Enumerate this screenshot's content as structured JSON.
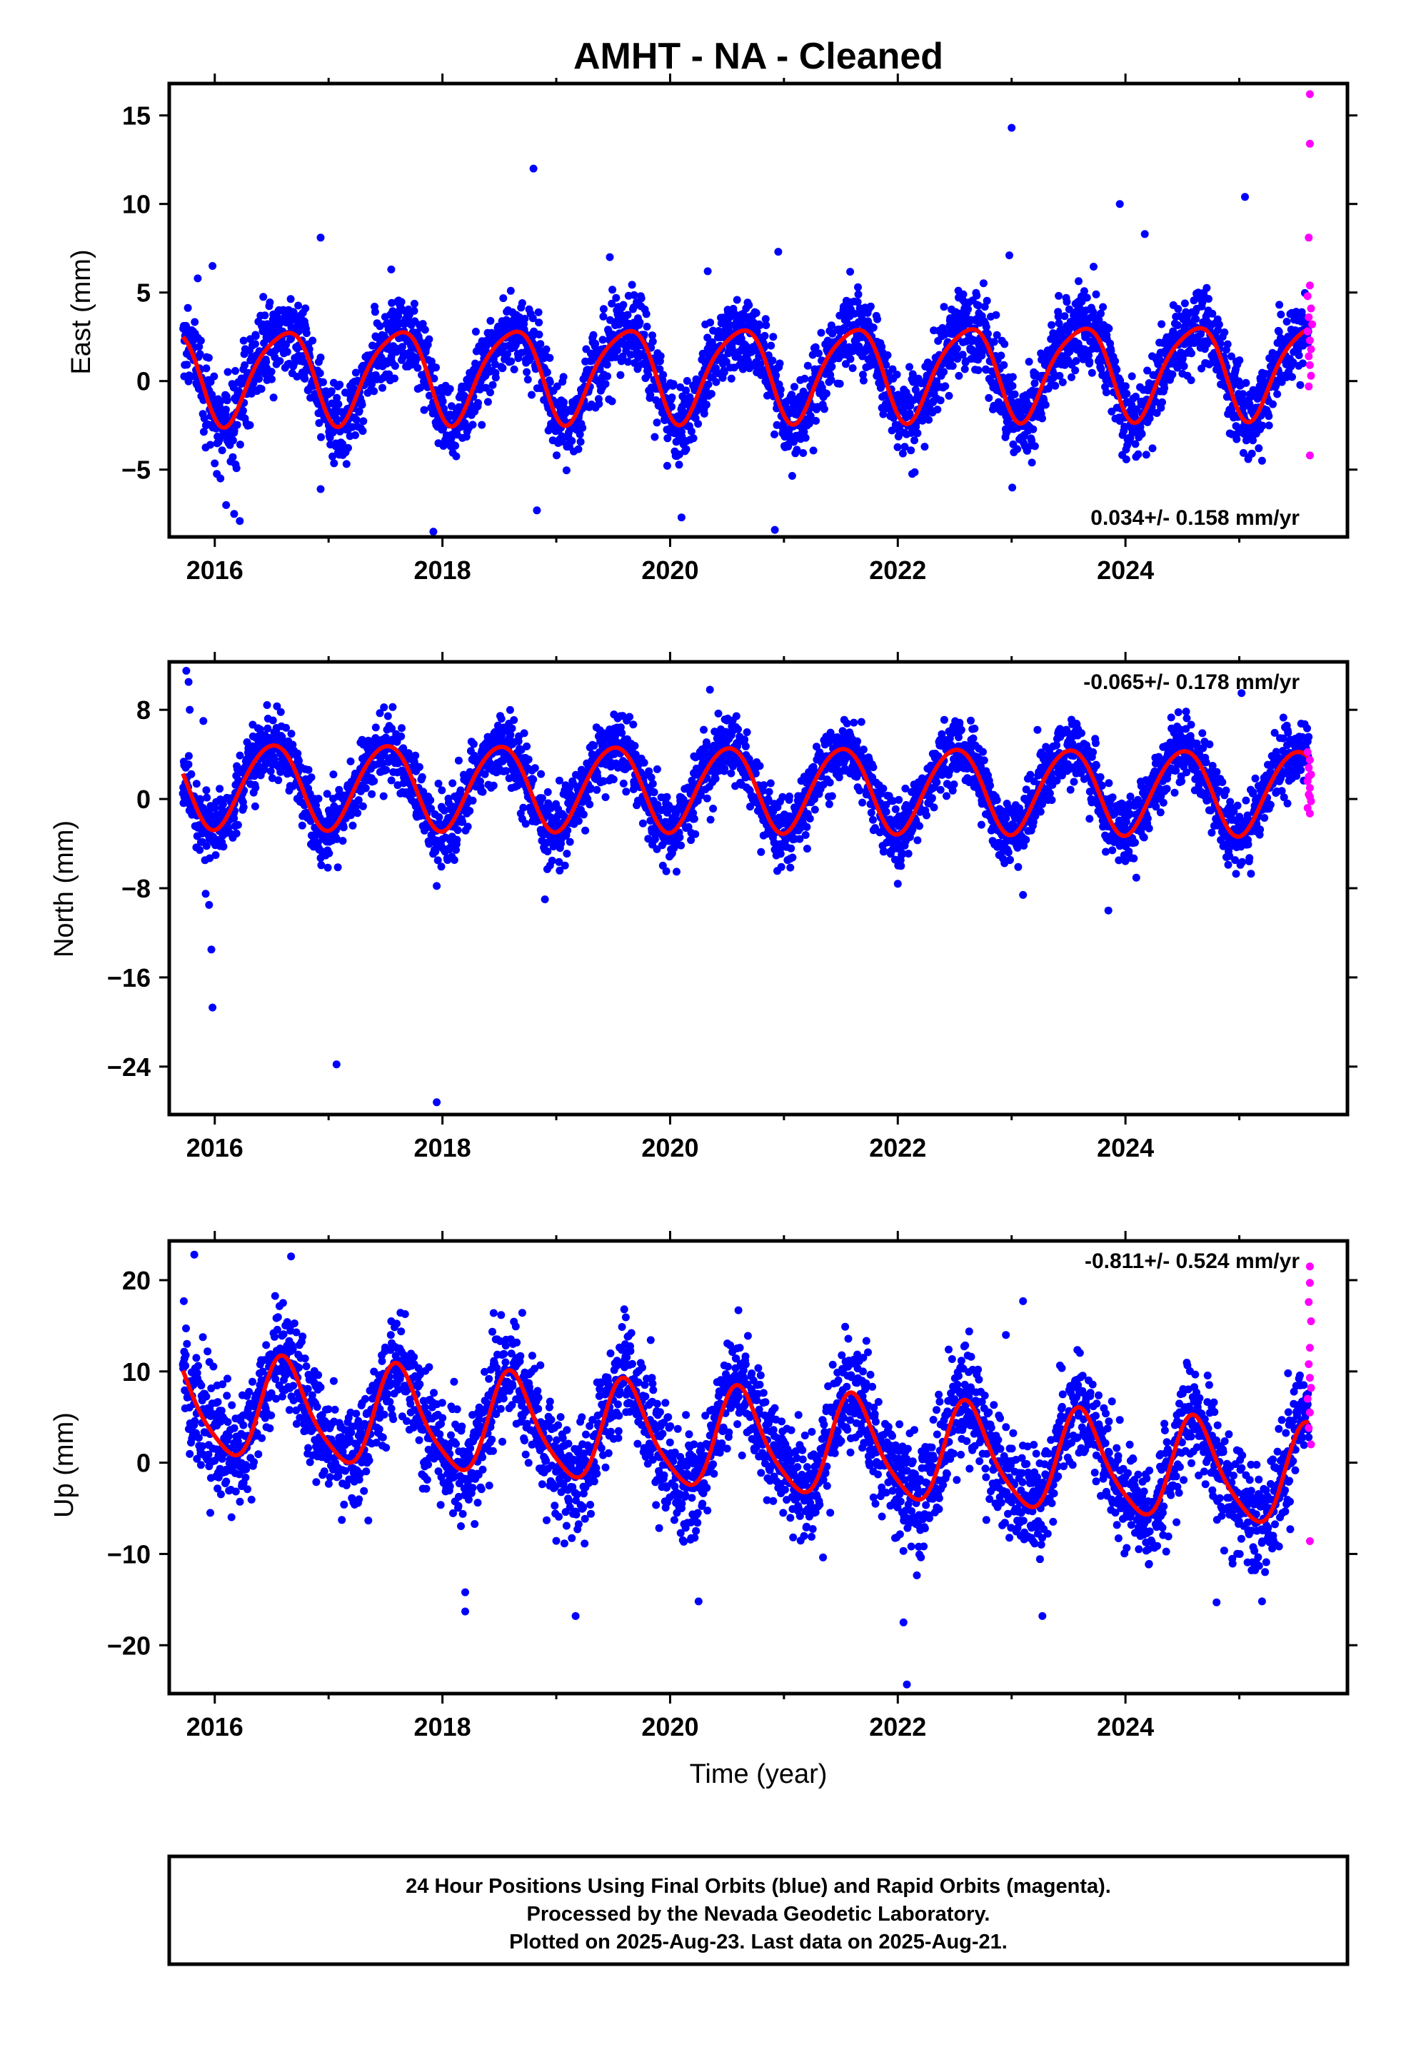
{
  "title": "AMHT  - NA - Cleaned",
  "footer": {
    "line1": "24 Hour Positions Using Final Orbits (blue) and Rapid Orbits (magenta).",
    "line2": "Processed by the Nevada Geodetic Laboratory.",
    "line3": "Plotted on 2025-Aug-23. Last data on 2025-Aug-21."
  },
  "colors": {
    "final": "#0000ff",
    "rapid": "#ff00ff",
    "fit": "#ff0000",
    "frame": "#000000"
  },
  "chart_data": [
    {
      "type": "scatter",
      "xlabel": "",
      "ylabel": "East (mm)",
      "xlim": [
        2015.6,
        2025.95
      ],
      "ylim": [
        -8.8,
        16.8
      ],
      "xticks": [
        "2016",
        "2018",
        "2020",
        "2022",
        "2024"
      ],
      "yticks": [
        "15",
        "10",
        "5",
        "0",
        "−5"
      ],
      "rate_label": "0.034+/- 0.158 mm/yr",
      "rate_position": "bottom-right",
      "fit": {
        "start": 2015.72,
        "end": 2025.61,
        "offset": 0.5,
        "trend": 0.034,
        "annual_amplitude": 2.6,
        "annual_peak": 0.6,
        "semiannual_amplitude": 0.45,
        "semiannual_peak": 0.3
      },
      "scatter_sigma": 1.1,
      "outliers_final": [
        [
          2015.85,
          5.8
        ],
        [
          2015.98,
          6.5
        ],
        [
          2016.1,
          -7.0
        ],
        [
          2016.17,
          -7.5
        ],
        [
          2016.22,
          -7.9
        ],
        [
          2016.05,
          -5.5
        ],
        [
          2016.93,
          8.1
        ],
        [
          2016.93,
          -6.1
        ],
        [
          2017.55,
          6.3
        ],
        [
          2017.92,
          -8.5
        ],
        [
          2018.8,
          12.0
        ],
        [
          2018.83,
          -7.3
        ],
        [
          2019.47,
          7.0
        ],
        [
          2020.1,
          -7.7
        ],
        [
          2020.33,
          6.2
        ],
        [
          2020.92,
          -8.4
        ],
        [
          2020.95,
          7.3
        ],
        [
          2023.0,
          14.3
        ],
        [
          2022.98,
          7.1
        ],
        [
          2023.95,
          10.0
        ],
        [
          2024.17,
          8.3
        ],
        [
          2025.05,
          10.4
        ],
        [
          2025.2,
          -4.5
        ]
      ],
      "rapid_points": [
        [
          2025.62,
          16.2
        ],
        [
          2025.62,
          13.4
        ],
        [
          2025.61,
          8.1
        ],
        [
          2025.62,
          5.4
        ],
        [
          2025.6,
          4.8
        ],
        [
          2025.63,
          4.1
        ],
        [
          2025.61,
          3.6
        ],
        [
          2025.64,
          3.2
        ],
        [
          2025.6,
          2.8
        ],
        [
          2025.62,
          2.3
        ],
        [
          2025.63,
          1.8
        ],
        [
          2025.61,
          1.4
        ],
        [
          2025.62,
          0.9
        ],
        [
          2025.63,
          0.3
        ],
        [
          2025.61,
          -0.3
        ],
        [
          2025.62,
          -4.2
        ]
      ]
    },
    {
      "type": "scatter",
      "xlabel": "",
      "ylabel": "North (mm)",
      "xlim": [
        2015.6,
        2025.95
      ],
      "ylim": [
        -28.3,
        12.3
      ],
      "xticks": [
        "2016",
        "2018",
        "2020",
        "2022",
        "2024"
      ],
      "yticks": [
        "8",
        "0",
        "−8",
        "−16",
        "−24"
      ],
      "rate_label": "-0.065+/- 0.178 mm/yr",
      "rate_position": "top-right",
      "fit": {
        "start": 2015.72,
        "end": 2025.61,
        "offset": 1.0,
        "trend": -0.065,
        "annual_amplitude": 3.8,
        "annual_peak": 0.5,
        "semiannual_amplitude": 0.3,
        "semiannual_peak": 0.2
      },
      "scatter_sigma": 1.5,
      "outliers_final": [
        [
          2015.75,
          11.5
        ],
        [
          2015.77,
          10.5
        ],
        [
          2015.78,
          8.0
        ],
        [
          2015.9,
          7.0
        ],
        [
          2015.92,
          -8.5
        ],
        [
          2015.95,
          -9.5
        ],
        [
          2015.97,
          -13.5
        ],
        [
          2015.98,
          -18.7
        ],
        [
          2017.07,
          -23.8
        ],
        [
          2017.95,
          -27.2
        ],
        [
          2017.95,
          -7.8
        ],
        [
          2018.9,
          -9.0
        ],
        [
          2020.35,
          9.8
        ],
        [
          2022.0,
          -7.6
        ],
        [
          2023.1,
          -8.6
        ],
        [
          2023.85,
          -10.0
        ],
        [
          2025.02,
          9.5
        ]
      ],
      "rapid_points": [
        [
          2025.6,
          4.2
        ],
        [
          2025.62,
          3.5
        ],
        [
          2025.61,
          2.8
        ],
        [
          2025.63,
          2.2
        ],
        [
          2025.6,
          1.6
        ],
        [
          2025.62,
          1.0
        ],
        [
          2025.61,
          0.4
        ],
        [
          2025.63,
          -0.2
        ],
        [
          2025.6,
          -0.8
        ],
        [
          2025.62,
          -1.3
        ],
        [
          2025.61,
          2.0
        ],
        [
          2025.62,
          0.2
        ]
      ]
    },
    {
      "type": "scatter",
      "xlabel": "Time (year)",
      "ylabel": "Up (mm)",
      "xlim": [
        2015.6,
        2025.95
      ],
      "ylim": [
        -25.3,
        24.3
      ],
      "xticks": [
        "2016",
        "2018",
        "2020",
        "2022",
        "2024"
      ],
      "yticks": [
        "20",
        "10",
        "0",
        "−10",
        "−20"
      ],
      "rate_label": "-0.811+/- 0.524 mm/yr",
      "rate_position": "top-right",
      "fit": {
        "start": 2015.72,
        "end": 2025.61,
        "offset": 2.8,
        "trend": -0.811,
        "annual_amplitude": 5.4,
        "annual_peak": 0.62,
        "semiannual_amplitude": 1.0,
        "semiannual_peak": 0.55
      },
      "scatter_sigma": 3.0,
      "outliers_final": [
        [
          2015.82,
          22.8
        ],
        [
          2016.67,
          22.6
        ],
        [
          2016.6,
          17.5
        ],
        [
          2017.55,
          15.5
        ],
        [
          2018.2,
          -16.3
        ],
        [
          2018.2,
          -14.2
        ],
        [
          2018.45,
          16.4
        ],
        [
          2019.17,
          -16.8
        ],
        [
          2020.25,
          -15.2
        ],
        [
          2020.6,
          16.7
        ],
        [
          2022.08,
          -24.3
        ],
        [
          2022.05,
          -17.5
        ],
        [
          2022.95,
          14.0
        ],
        [
          2023.1,
          17.7
        ],
        [
          2023.27,
          -16.8
        ],
        [
          2024.8,
          -15.3
        ],
        [
          2025.2,
          -15.2
        ]
      ],
      "rapid_points": [
        [
          2025.62,
          21.5
        ],
        [
          2025.62,
          19.7
        ],
        [
          2025.61,
          17.6
        ],
        [
          2025.63,
          15.5
        ],
        [
          2025.62,
          12.6
        ],
        [
          2025.61,
          10.8
        ],
        [
          2025.62,
          9.3
        ],
        [
          2025.63,
          8.2
        ],
        [
          2025.6,
          7.0
        ],
        [
          2025.62,
          5.5
        ],
        [
          2025.61,
          3.8
        ],
        [
          2025.63,
          2.0
        ],
        [
          2025.62,
          -8.6
        ]
      ]
    }
  ]
}
